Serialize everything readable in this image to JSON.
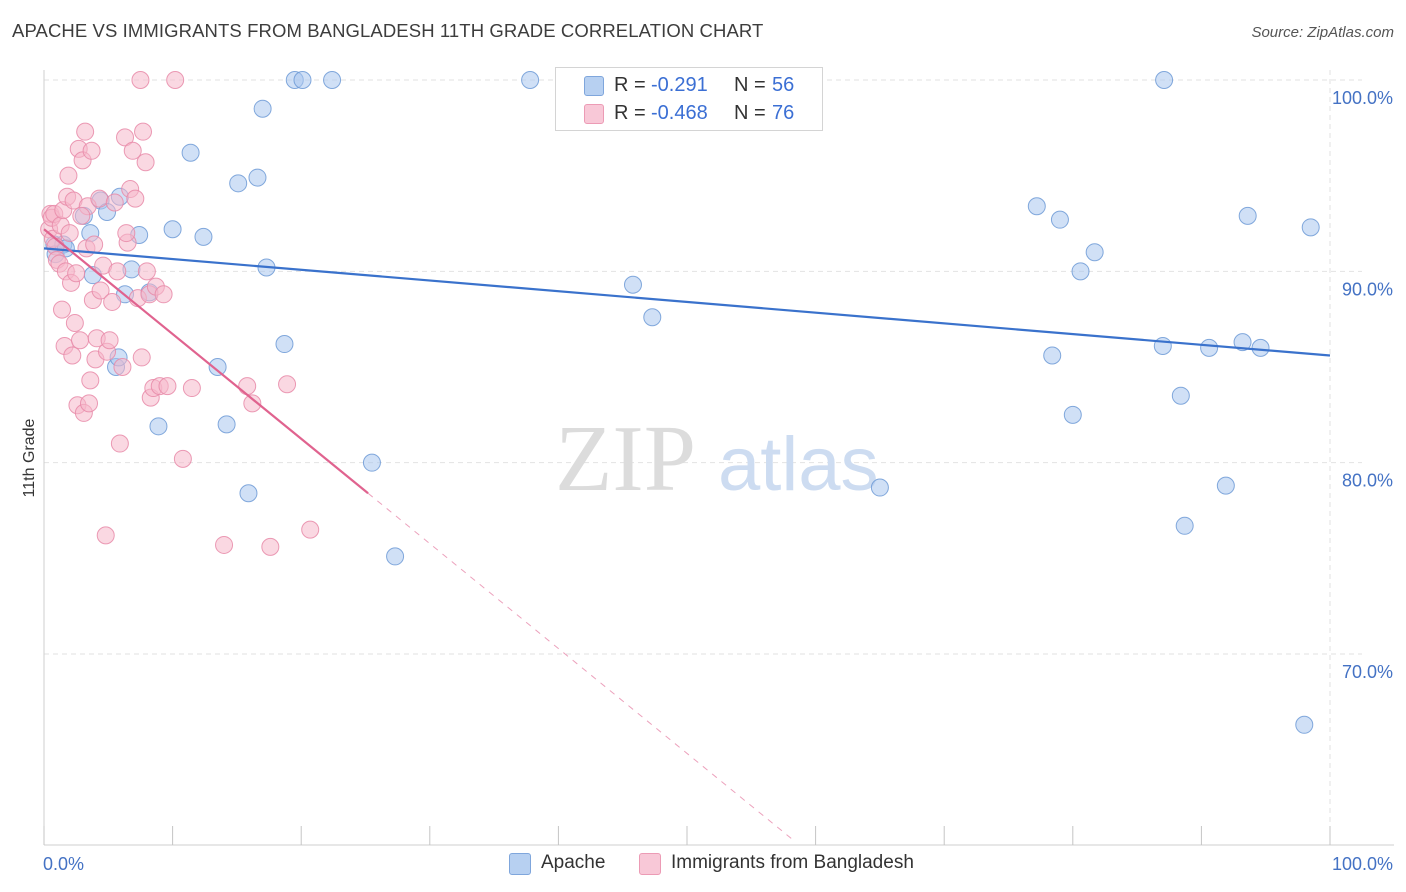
{
  "header": {
    "title": "APACHE VS IMMIGRANTS FROM BANGLADESH 11TH GRADE CORRELATION CHART",
    "source": "Source: ZipAtlas.com"
  },
  "watermark": {
    "zip": "ZIP",
    "atlas": "atlas"
  },
  "legend": {
    "rows": [
      {
        "r_label": "R =",
        "r_value": "-0.291",
        "n_label": "N =",
        "n_value": "56"
      },
      {
        "r_label": "R =",
        "r_value": "-0.468",
        "n_label": "N =",
        "n_value": "76"
      }
    ]
  },
  "bottom_legend": {
    "apache": "Apache",
    "bangladesh": "Immigrants from Bangladesh"
  },
  "colors": {
    "apache_fill": "#a9c6ee",
    "apache_stroke": "#6d9ad6",
    "apache_line": "#3a72cc",
    "bangladesh_fill": "#f5b8cb",
    "bangladesh_stroke": "#e88aa8",
    "bangladesh_line": "#e0638f",
    "axis_text": "#4472c4",
    "grid": "#e2e2e2"
  },
  "chart_data": {
    "type": "scatter",
    "title": "APACHE VS IMMIGRANTS FROM BANGLADESH 11TH GRADE CORRELATION CHART",
    "xlabel": "",
    "ylabel": "11th Grade",
    "xlim": [
      0,
      100
    ],
    "ylim": [
      60,
      101
    ],
    "x_tick_labels": [
      "0.0%",
      "100.0%"
    ],
    "y_ticks": [
      70,
      80,
      90,
      100
    ],
    "y_tick_labels": [
      "70.0%",
      "80.0%",
      "90.0%",
      "100.0%"
    ],
    "grid": true,
    "legend_position": "top-center",
    "series": [
      {
        "name": "Apache",
        "r": -0.291,
        "n": 56,
        "trend": {
          "x": [
            0,
            100
          ],
          "y": [
            91.2,
            85.6
          ]
        },
        "points": [
          [
            0.8,
            91.4
          ],
          [
            0.9,
            90.9
          ],
          [
            1.5,
            91.4
          ],
          [
            1.7,
            91.2
          ],
          [
            3.1,
            92.9
          ],
          [
            3.6,
            92.0
          ],
          [
            3.8,
            89.8
          ],
          [
            4.4,
            93.7
          ],
          [
            4.9,
            93.1
          ],
          [
            5.6,
            85.0
          ],
          [
            5.8,
            85.5
          ],
          [
            5.9,
            93.9
          ],
          [
            6.3,
            88.8
          ],
          [
            6.8,
            90.1
          ],
          [
            7.4,
            91.9
          ],
          [
            8.2,
            88.9
          ],
          [
            8.9,
            81.9
          ],
          [
            10.0,
            92.2
          ],
          [
            11.4,
            96.2
          ],
          [
            12.4,
            91.8
          ],
          [
            13.5,
            85.0
          ],
          [
            14.2,
            82.0
          ],
          [
            15.1,
            94.6
          ],
          [
            15.9,
            78.4
          ],
          [
            16.6,
            94.9
          ],
          [
            17.0,
            98.5
          ],
          [
            17.3,
            90.2
          ],
          [
            18.7,
            86.2
          ],
          [
            19.5,
            100.0
          ],
          [
            20.1,
            100.0
          ],
          [
            22.4,
            100.0
          ],
          [
            25.5,
            80.0
          ],
          [
            27.3,
            75.1
          ],
          [
            37.8,
            100.0
          ],
          [
            45.8,
            89.3
          ],
          [
            47.3,
            87.6
          ],
          [
            47.8,
            100.0
          ],
          [
            59.1,
            100.0
          ],
          [
            65.0,
            78.7
          ],
          [
            77.2,
            93.4
          ],
          [
            78.4,
            85.6
          ],
          [
            79.0,
            92.7
          ],
          [
            80.0,
            82.5
          ],
          [
            80.6,
            90.0
          ],
          [
            81.7,
            91.0
          ],
          [
            87.1,
            100.0
          ],
          [
            87.0,
            86.1
          ],
          [
            88.4,
            83.5
          ],
          [
            88.7,
            76.7
          ],
          [
            90.6,
            86.0
          ],
          [
            91.9,
            78.8
          ],
          [
            93.2,
            86.3
          ],
          [
            93.6,
            92.9
          ],
          [
            94.6,
            86.0
          ],
          [
            98.0,
            66.3
          ],
          [
            98.5,
            92.3
          ]
        ]
      },
      {
        "name": "Immigrants from Bangladesh",
        "r": -0.468,
        "n": 76,
        "trend": {
          "x": [
            0,
            25.2
          ],
          "y": [
            92.2,
            78.4
          ]
        },
        "trend_extrapolated": {
          "x": [
            25.2,
            58.4
          ],
          "y": [
            78.4,
            60.2
          ]
        },
        "points": [
          [
            0.4,
            92.2
          ],
          [
            0.5,
            93.0
          ],
          [
            0.6,
            92.8
          ],
          [
            0.7,
            91.7
          ],
          [
            0.8,
            93.0
          ],
          [
            0.9,
            91.3
          ],
          [
            1.0,
            90.6
          ],
          [
            1.2,
            90.4
          ],
          [
            1.3,
            92.4
          ],
          [
            1.4,
            88.0
          ],
          [
            1.5,
            93.2
          ],
          [
            1.6,
            86.1
          ],
          [
            1.7,
            90.0
          ],
          [
            1.8,
            93.9
          ],
          [
            1.9,
            95.0
          ],
          [
            2.0,
            92.0
          ],
          [
            2.1,
            89.4
          ],
          [
            2.2,
            85.6
          ],
          [
            2.3,
            93.7
          ],
          [
            2.4,
            87.3
          ],
          [
            2.5,
            89.9
          ],
          [
            2.6,
            83.0
          ],
          [
            2.7,
            96.4
          ],
          [
            2.8,
            86.4
          ],
          [
            3.0,
            95.8
          ],
          [
            3.1,
            82.6
          ],
          [
            3.2,
            97.3
          ],
          [
            3.3,
            91.2
          ],
          [
            3.4,
            93.4
          ],
          [
            3.5,
            83.1
          ],
          [
            3.6,
            84.3
          ],
          [
            3.7,
            96.3
          ],
          [
            3.8,
            88.5
          ],
          [
            3.9,
            91.4
          ],
          [
            4.0,
            85.4
          ],
          [
            4.1,
            86.5
          ],
          [
            4.3,
            93.8
          ],
          [
            4.4,
            89.0
          ],
          [
            4.6,
            90.3
          ],
          [
            4.9,
            85.8
          ],
          [
            5.1,
            86.4
          ],
          [
            5.3,
            88.4
          ],
          [
            5.7,
            90.0
          ],
          [
            5.9,
            81.0
          ],
          [
            6.1,
            85.0
          ],
          [
            6.3,
            97.0
          ],
          [
            6.5,
            91.5
          ],
          [
            6.7,
            94.3
          ],
          [
            6.9,
            96.3
          ],
          [
            7.1,
            93.8
          ],
          [
            7.3,
            88.6
          ],
          [
            7.5,
            100.0
          ],
          [
            7.7,
            97.3
          ],
          [
            7.9,
            95.7
          ],
          [
            8.0,
            90.0
          ],
          [
            8.2,
            88.8
          ],
          [
            8.3,
            83.4
          ],
          [
            8.5,
            83.9
          ],
          [
            8.7,
            89.2
          ],
          [
            9.0,
            84.0
          ],
          [
            9.3,
            88.8
          ],
          [
            9.6,
            84.0
          ],
          [
            10.2,
            100.0
          ],
          [
            10.8,
            80.2
          ],
          [
            11.5,
            83.9
          ],
          [
            14.0,
            75.7
          ],
          [
            15.8,
            84.0
          ],
          [
            16.2,
            83.1
          ],
          [
            17.6,
            75.6
          ],
          [
            18.9,
            84.1
          ],
          [
            20.7,
            76.5
          ],
          [
            2.9,
            92.9
          ],
          [
            4.8,
            76.2
          ],
          [
            6.4,
            92.0
          ],
          [
            7.6,
            85.5
          ],
          [
            5.5,
            93.6
          ]
        ]
      }
    ]
  }
}
